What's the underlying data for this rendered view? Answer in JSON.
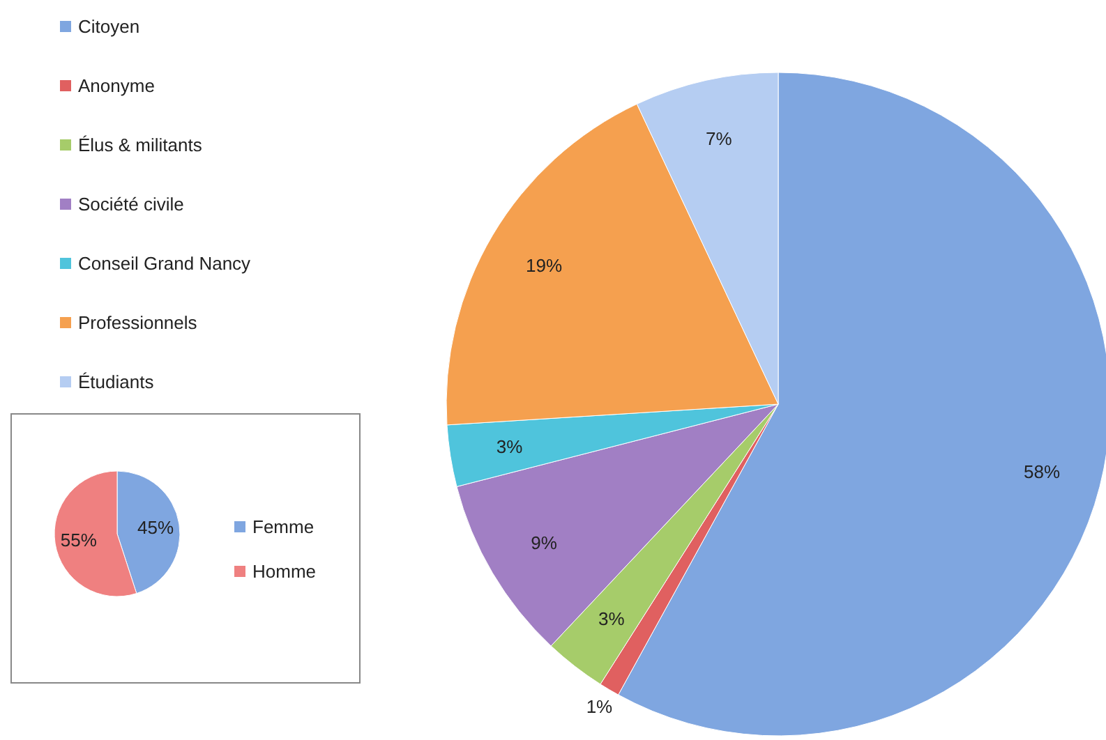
{
  "chart_data": [
    {
      "type": "pie",
      "categories": [
        "Citoyen",
        "Anonyme",
        "Élus & militants",
        "Société civile",
        "Conseil Grand Nancy",
        "Professionnels",
        "Étudiants"
      ],
      "values": [
        58,
        1,
        3,
        9,
        3,
        19,
        7
      ],
      "value_labels": [
        "58%",
        "1%",
        "3%",
        "9%",
        "3%",
        "19%",
        "7%"
      ],
      "colors": [
        "#7fa6e0",
        "#e06060",
        "#a6cc6a",
        "#a17fc4",
        "#4fc4dc",
        "#f5a04f",
        "#b5cdf2"
      ],
      "legend": "top left"
    },
    {
      "type": "pie",
      "categories": [
        "Femme",
        "Homme"
      ],
      "values": [
        45,
        55
      ],
      "value_labels": [
        "45%",
        "55%"
      ],
      "colors": [
        "#7fa6e0",
        "#ef8080"
      ],
      "legend": "right"
    }
  ]
}
